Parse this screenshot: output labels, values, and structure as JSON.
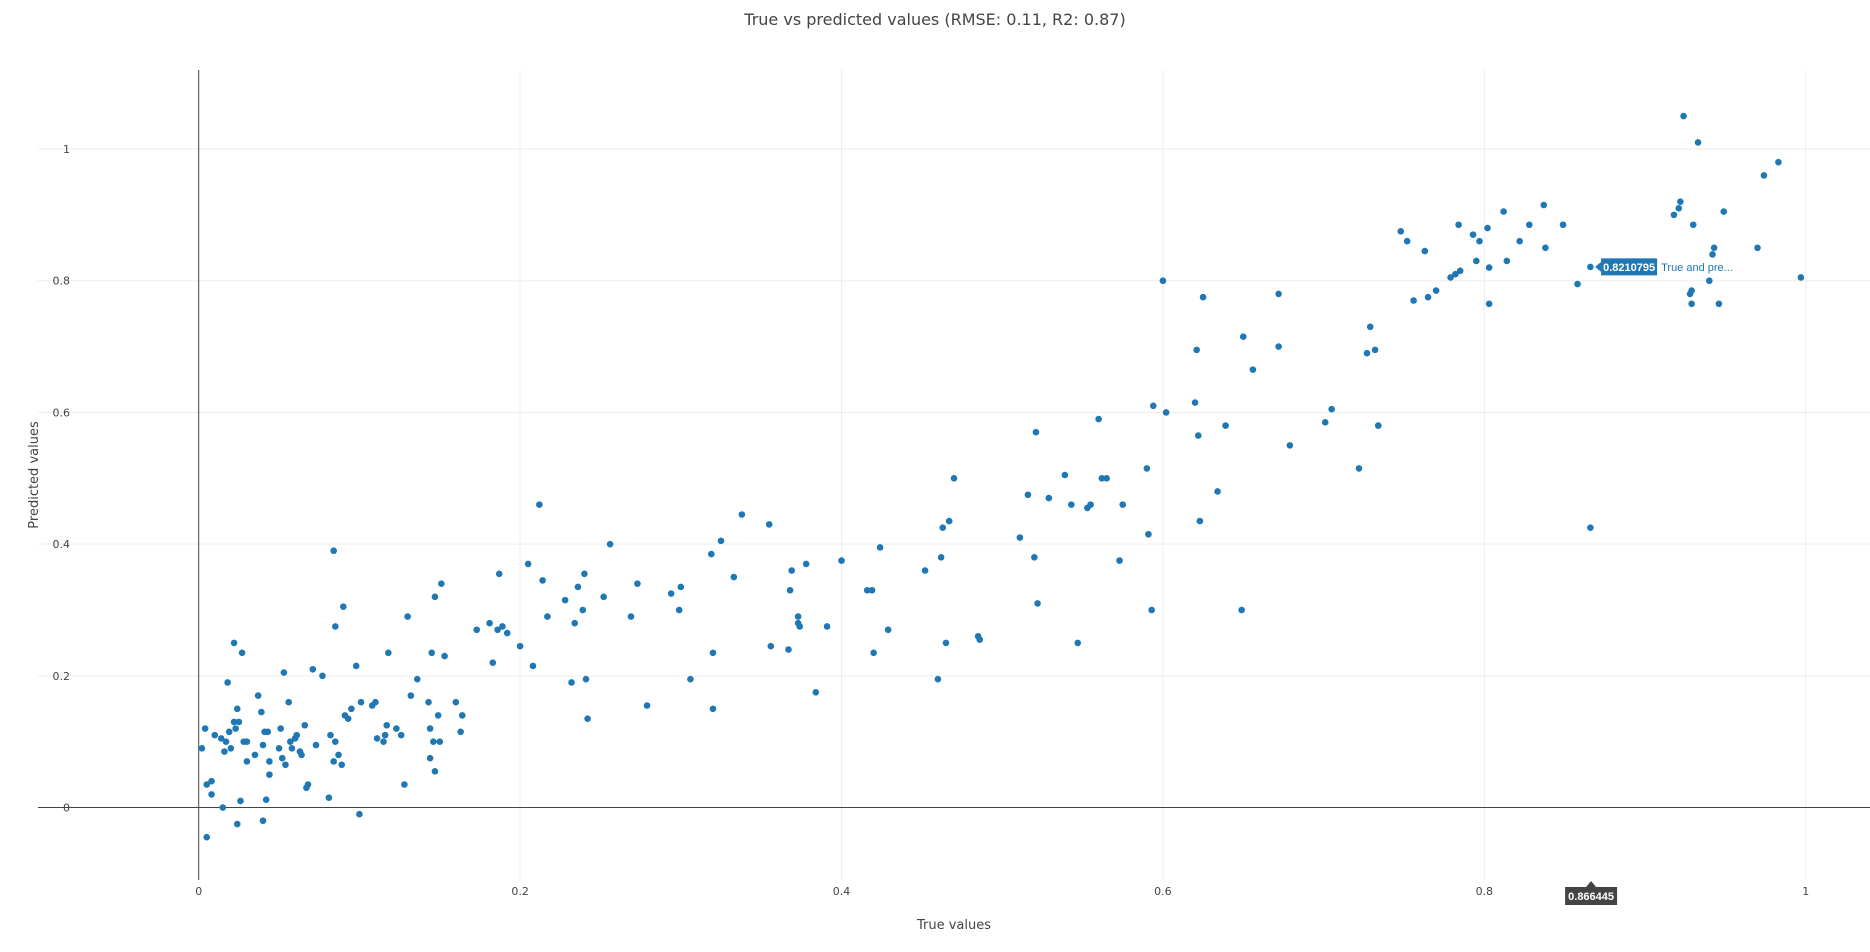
{
  "chart_data": {
    "type": "scatter",
    "title": "True vs predicted values (RMSE: 0.11, R2: 0.87)",
    "xlabel": "True values",
    "ylabel": "Predicted values",
    "xlim": [
      -0.1,
      1.04
    ],
    "ylim": [
      -0.11,
      1.12
    ],
    "x_ticks": [
      0,
      0.2,
      0.4,
      0.6,
      0.8,
      1
    ],
    "y_ticks": [
      0,
      0.2,
      0.4,
      0.6,
      0.8,
      1
    ],
    "x_tick_labels": [
      "0",
      "0.2",
      "0.4",
      "0.6",
      "0.8",
      "1"
    ],
    "y_tick_labels": [
      "0",
      "0.2",
      "0.4",
      "0.6",
      "0.8",
      "1"
    ],
    "grid": true,
    "color": "#1f77b4",
    "hover": {
      "x_label": "0.866445",
      "y_label": "0.8210795",
      "series_label": "True and pre..."
    },
    "points": [
      [
        0.002,
        0.09
      ],
      [
        0.004,
        0.12
      ],
      [
        0.005,
        0.035
      ],
      [
        0.005,
        -0.045
      ],
      [
        0.008,
        0.04
      ],
      [
        0.008,
        0.02
      ],
      [
        0.01,
        0.11
      ],
      [
        0.014,
        0.105
      ],
      [
        0.015,
        0.0
      ],
      [
        0.016,
        0.085
      ],
      [
        0.017,
        0.1
      ],
      [
        0.018,
        0.19
      ],
      [
        0.019,
        0.115
      ],
      [
        0.02,
        0.09
      ],
      [
        0.022,
        0.13
      ],
      [
        0.022,
        0.25
      ],
      [
        0.023,
        0.12
      ],
      [
        0.024,
        0.15
      ],
      [
        0.024,
        -0.025
      ],
      [
        0.025,
        0.13
      ],
      [
        0.026,
        0.01
      ],
      [
        0.027,
        0.235
      ],
      [
        0.028,
        0.1
      ],
      [
        0.03,
        0.07
      ],
      [
        0.03,
        0.1
      ],
      [
        0.035,
        0.08
      ],
      [
        0.037,
        0.17
      ],
      [
        0.039,
        0.145
      ],
      [
        0.04,
        0.095
      ],
      [
        0.04,
        -0.02
      ],
      [
        0.041,
        0.115
      ],
      [
        0.042,
        0.012
      ],
      [
        0.043,
        0.115
      ],
      [
        0.044,
        0.07
      ],
      [
        0.044,
        0.05
      ],
      [
        0.05,
        0.09
      ],
      [
        0.051,
        0.12
      ],
      [
        0.052,
        0.075
      ],
      [
        0.053,
        0.205
      ],
      [
        0.054,
        0.065
      ],
      [
        0.056,
        0.16
      ],
      [
        0.057,
        0.1
      ],
      [
        0.058,
        0.09
      ],
      [
        0.06,
        0.105
      ],
      [
        0.061,
        0.11
      ],
      [
        0.063,
        0.085
      ],
      [
        0.064,
        0.08
      ],
      [
        0.066,
        0.125
      ],
      [
        0.067,
        0.03
      ],
      [
        0.068,
        0.035
      ],
      [
        0.071,
        0.21
      ],
      [
        0.073,
        0.095
      ],
      [
        0.077,
        0.2
      ],
      [
        0.081,
        0.015
      ],
      [
        0.082,
        0.11
      ],
      [
        0.084,
        0.07
      ],
      [
        0.084,
        0.39
      ],
      [
        0.085,
        0.275
      ],
      [
        0.085,
        0.1
      ],
      [
        0.087,
        0.08
      ],
      [
        0.089,
        0.065
      ],
      [
        0.09,
        0.305
      ],
      [
        0.091,
        0.14
      ],
      [
        0.093,
        0.135
      ],
      [
        0.095,
        0.15
      ],
      [
        0.098,
        0.215
      ],
      [
        0.1,
        -0.01
      ],
      [
        0.101,
        0.16
      ],
      [
        0.108,
        0.155
      ],
      [
        0.11,
        0.16
      ],
      [
        0.111,
        0.105
      ],
      [
        0.115,
        0.1
      ],
      [
        0.116,
        0.11
      ],
      [
        0.117,
        0.125
      ],
      [
        0.118,
        0.235
      ],
      [
        0.123,
        0.12
      ],
      [
        0.126,
        0.11
      ],
      [
        0.128,
        0.035
      ],
      [
        0.13,
        0.29
      ],
      [
        0.132,
        0.17
      ],
      [
        0.136,
        0.195
      ],
      [
        0.143,
        0.16
      ],
      [
        0.144,
        0.12
      ],
      [
        0.144,
        0.075
      ],
      [
        0.145,
        0.235
      ],
      [
        0.146,
        0.1
      ],
      [
        0.147,
        0.32
      ],
      [
        0.147,
        0.055
      ],
      [
        0.149,
        0.14
      ],
      [
        0.15,
        0.1
      ],
      [
        0.151,
        0.34
      ],
      [
        0.153,
        0.23
      ],
      [
        0.16,
        0.16
      ],
      [
        0.163,
        0.115
      ],
      [
        0.164,
        0.14
      ],
      [
        0.173,
        0.27
      ],
      [
        0.181,
        0.28
      ],
      [
        0.183,
        0.22
      ],
      [
        0.186,
        0.27
      ],
      [
        0.187,
        0.355
      ],
      [
        0.189,
        0.275
      ],
      [
        0.192,
        0.265
      ],
      [
        0.2,
        0.245
      ],
      [
        0.205,
        0.37
      ],
      [
        0.208,
        0.215
      ],
      [
        0.212,
        0.46
      ],
      [
        0.214,
        0.345
      ],
      [
        0.217,
        0.29
      ],
      [
        0.228,
        0.315
      ],
      [
        0.232,
        0.19
      ],
      [
        0.234,
        0.28
      ],
      [
        0.236,
        0.335
      ],
      [
        0.239,
        0.3
      ],
      [
        0.24,
        0.355
      ],
      [
        0.241,
        0.195
      ],
      [
        0.242,
        0.135
      ],
      [
        0.252,
        0.32
      ],
      [
        0.256,
        0.4
      ],
      [
        0.269,
        0.29
      ],
      [
        0.273,
        0.34
      ],
      [
        0.279,
        0.155
      ],
      [
        0.294,
        0.325
      ],
      [
        0.299,
        0.3
      ],
      [
        0.3,
        0.335
      ],
      [
        0.306,
        0.195
      ],
      [
        0.319,
        0.385
      ],
      [
        0.32,
        0.15
      ],
      [
        0.32,
        0.235
      ],
      [
        0.325,
        0.405
      ],
      [
        0.333,
        0.35
      ],
      [
        0.338,
        0.445
      ],
      [
        0.355,
        0.43
      ],
      [
        0.356,
        0.245
      ],
      [
        0.367,
        0.24
      ],
      [
        0.368,
        0.33
      ],
      [
        0.369,
        0.36
      ],
      [
        0.373,
        0.29
      ],
      [
        0.373,
        0.28
      ],
      [
        0.374,
        0.275
      ],
      [
        0.378,
        0.37
      ],
      [
        0.384,
        0.175
      ],
      [
        0.391,
        0.275
      ],
      [
        0.4,
        0.375
      ],
      [
        0.416,
        0.33
      ],
      [
        0.419,
        0.33
      ],
      [
        0.42,
        0.235
      ],
      [
        0.424,
        0.395
      ],
      [
        0.429,
        0.27
      ],
      [
        0.452,
        0.36
      ],
      [
        0.46,
        0.195
      ],
      [
        0.462,
        0.38
      ],
      [
        0.463,
        0.425
      ],
      [
        0.465,
        0.25
      ],
      [
        0.467,
        0.435
      ],
      [
        0.47,
        0.5
      ],
      [
        0.485,
        0.26
      ],
      [
        0.486,
        0.255
      ],
      [
        0.511,
        0.41
      ],
      [
        0.516,
        0.475
      ],
      [
        0.52,
        0.38
      ],
      [
        0.521,
        0.57
      ],
      [
        0.522,
        0.31
      ],
      [
        0.529,
        0.47
      ],
      [
        0.539,
        0.505
      ],
      [
        0.543,
        0.46
      ],
      [
        0.547,
        0.25
      ],
      [
        0.553,
        0.455
      ],
      [
        0.555,
        0.46
      ],
      [
        0.56,
        0.59
      ],
      [
        0.562,
        0.5
      ],
      [
        0.565,
        0.5
      ],
      [
        0.573,
        0.375
      ],
      [
        0.575,
        0.46
      ],
      [
        0.59,
        0.515
      ],
      [
        0.591,
        0.415
      ],
      [
        0.593,
        0.3
      ],
      [
        0.594,
        0.61
      ],
      [
        0.6,
        0.8
      ],
      [
        0.602,
        0.6
      ],
      [
        0.62,
        0.615
      ],
      [
        0.621,
        0.695
      ],
      [
        0.622,
        0.565
      ],
      [
        0.623,
        0.435
      ],
      [
        0.625,
        0.775
      ],
      [
        0.634,
        0.48
      ],
      [
        0.639,
        0.58
      ],
      [
        0.649,
        0.3
      ],
      [
        0.65,
        0.715
      ],
      [
        0.656,
        0.665
      ],
      [
        0.672,
        0.7
      ],
      [
        0.672,
        0.78
      ],
      [
        0.679,
        0.55
      ],
      [
        0.701,
        0.585
      ],
      [
        0.705,
        0.605
      ],
      [
        0.722,
        0.515
      ],
      [
        0.727,
        0.69
      ],
      [
        0.729,
        0.73
      ],
      [
        0.732,
        0.695
      ],
      [
        0.734,
        0.58
      ],
      [
        0.748,
        0.875
      ],
      [
        0.752,
        0.86
      ],
      [
        0.756,
        0.77
      ],
      [
        0.763,
        0.845
      ],
      [
        0.765,
        0.775
      ],
      [
        0.77,
        0.785
      ],
      [
        0.779,
        0.805
      ],
      [
        0.782,
        0.81
      ],
      [
        0.784,
        0.885
      ],
      [
        0.785,
        0.815
      ],
      [
        0.793,
        0.87
      ],
      [
        0.795,
        0.83
      ],
      [
        0.797,
        0.86
      ],
      [
        0.802,
        0.88
      ],
      [
        0.803,
        0.82
      ],
      [
        0.803,
        0.765
      ],
      [
        0.812,
        0.905
      ],
      [
        0.814,
        0.83
      ],
      [
        0.822,
        0.86
      ],
      [
        0.828,
        0.885
      ],
      [
        0.837,
        0.915
      ],
      [
        0.838,
        0.85
      ],
      [
        0.849,
        0.885
      ],
      [
        0.858,
        0.795
      ],
      [
        0.866,
        0.425
      ],
      [
        0.866,
        0.821
      ],
      [
        0.918,
        0.9
      ],
      [
        0.921,
        0.91
      ],
      [
        0.922,
        0.92
      ],
      [
        0.924,
        1.05
      ],
      [
        0.928,
        0.78
      ],
      [
        0.929,
        0.785
      ],
      [
        0.929,
        0.765
      ],
      [
        0.93,
        0.885
      ],
      [
        0.933,
        1.01
      ],
      [
        0.94,
        0.8
      ],
      [
        0.942,
        0.84
      ],
      [
        0.943,
        0.85
      ],
      [
        0.946,
        0.765
      ],
      [
        0.949,
        0.905
      ],
      [
        0.97,
        0.85
      ],
      [
        0.974,
        0.96
      ],
      [
        0.983,
        0.98
      ],
      [
        0.997,
        0.805
      ]
    ]
  }
}
